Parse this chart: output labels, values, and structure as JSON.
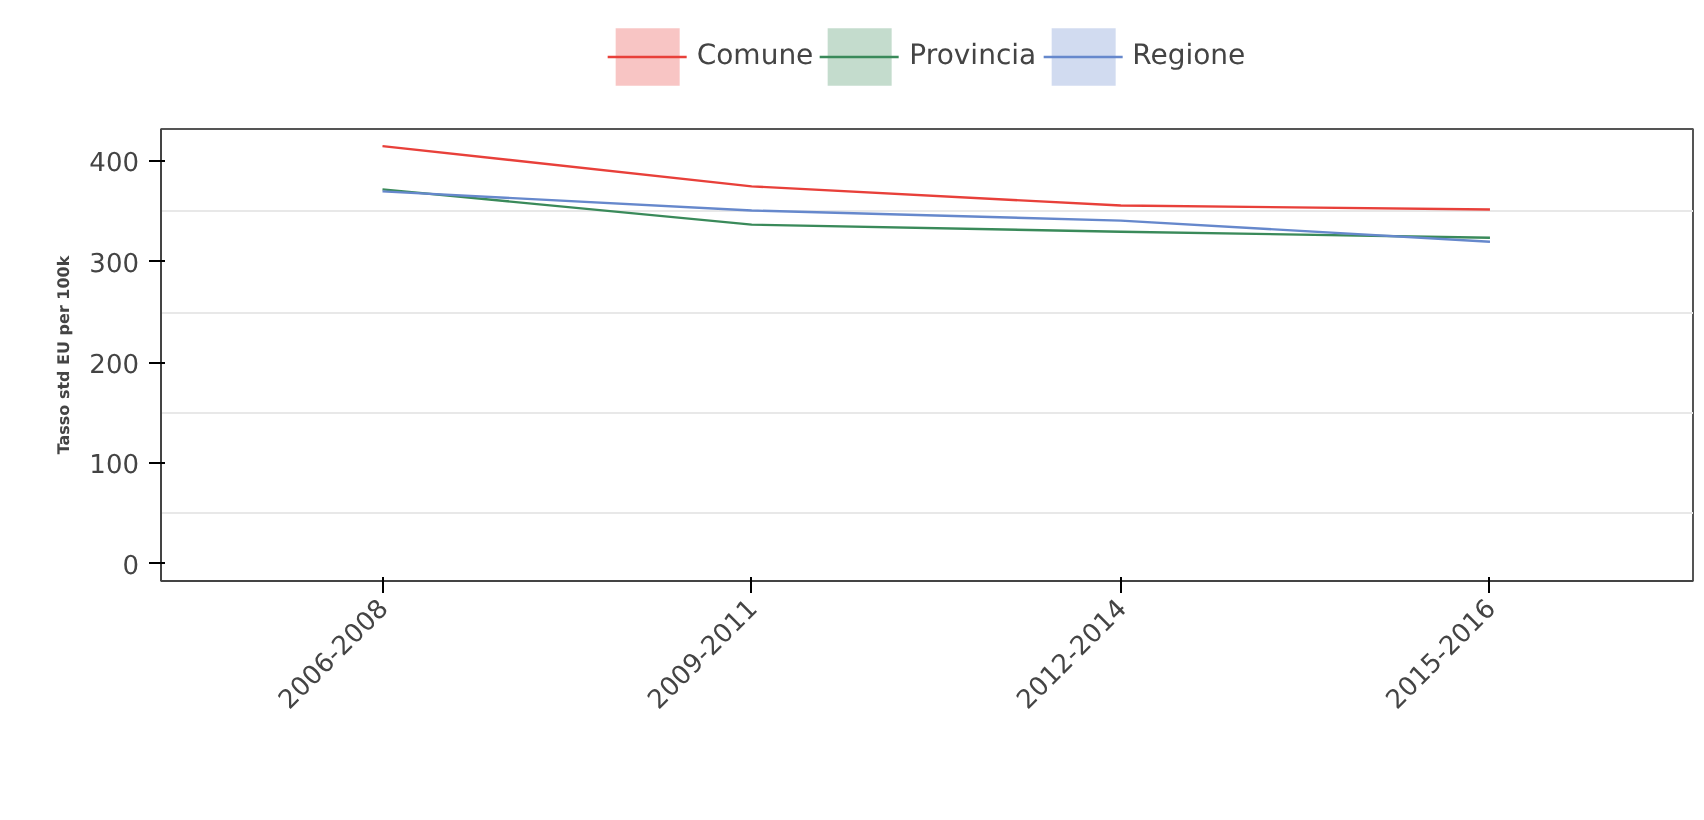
{
  "chart_data": {
    "type": "line",
    "ylabel": "Tasso std EU per 100k",
    "categories": [
      "2006-2008",
      "2009-2011",
      "2012-2014",
      "2015-2016"
    ],
    "series": [
      {
        "name": "Comune",
        "color": "#e8403a",
        "values": [
          415,
          375,
          356,
          352
        ]
      },
      {
        "name": "Provincia",
        "color": "#3a8a5a",
        "values": [
          372,
          337,
          330,
          324
        ]
      },
      {
        "name": "Regione",
        "color": "#6688cc",
        "values": [
          370,
          351,
          341,
          320
        ]
      }
    ],
    "ylim": [
      -17,
      432
    ],
    "yticks": [
      0,
      100,
      200,
      300,
      400
    ],
    "grid": "y",
    "legend": "top",
    "line_style": "solid",
    "marker": "none"
  }
}
